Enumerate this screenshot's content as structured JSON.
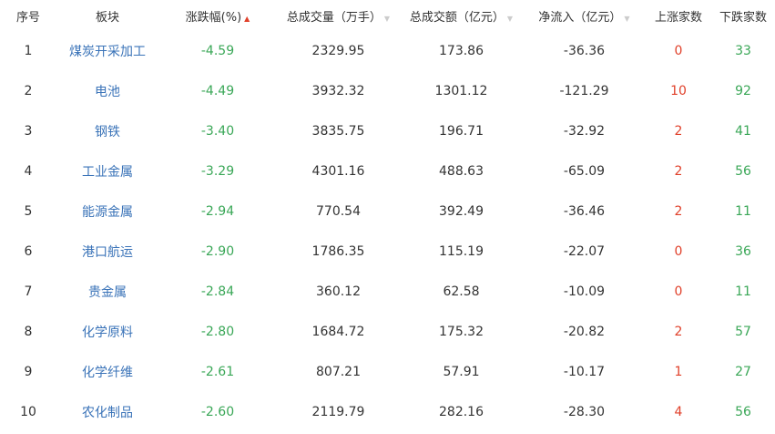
{
  "headers": [
    "序号",
    "板块",
    "涨跌幅(%)",
    "总成交量（万手）",
    "总成交额（亿元）",
    "净流入（亿元）",
    "上涨家数",
    "下跌家数"
  ],
  "sort_icons": {
    "change": "sort-up-icon",
    "volume": "sort-icon",
    "amount": "sort-icon",
    "inflow": "sort-icon"
  },
  "colors": {
    "name": "#3a73b8",
    "down": "#3aa757",
    "up": "#e0402a"
  },
  "rows": [
    {
      "rank": "1",
      "name": "煤炭开采加工",
      "change": "-4.59",
      "volume": "2329.95",
      "amount": "173.86",
      "inflow": "-36.36",
      "up": "0",
      "down": "33"
    },
    {
      "rank": "2",
      "name": "电池",
      "change": "-4.49",
      "volume": "3932.32",
      "amount": "1301.12",
      "inflow": "-121.29",
      "up": "10",
      "down": "92"
    },
    {
      "rank": "3",
      "name": "钢铁",
      "change": "-3.40",
      "volume": "3835.75",
      "amount": "196.71",
      "inflow": "-32.92",
      "up": "2",
      "down": "41"
    },
    {
      "rank": "4",
      "name": "工业金属",
      "change": "-3.29",
      "volume": "4301.16",
      "amount": "488.63",
      "inflow": "-65.09",
      "up": "2",
      "down": "56"
    },
    {
      "rank": "5",
      "name": "能源金属",
      "change": "-2.94",
      "volume": "770.54",
      "amount": "392.49",
      "inflow": "-36.46",
      "up": "2",
      "down": "11"
    },
    {
      "rank": "6",
      "name": "港口航运",
      "change": "-2.90",
      "volume": "1786.35",
      "amount": "115.19",
      "inflow": "-22.07",
      "up": "0",
      "down": "36"
    },
    {
      "rank": "7",
      "name": "贵金属",
      "change": "-2.84",
      "volume": "360.12",
      "amount": "62.58",
      "inflow": "-10.09",
      "up": "0",
      "down": "11"
    },
    {
      "rank": "8",
      "name": "化学原料",
      "change": "-2.80",
      "volume": "1684.72",
      "amount": "175.32",
      "inflow": "-20.82",
      "up": "2",
      "down": "57"
    },
    {
      "rank": "9",
      "name": "化学纤维",
      "change": "-2.61",
      "volume": "807.21",
      "amount": "57.91",
      "inflow": "-10.17",
      "up": "1",
      "down": "27"
    },
    {
      "rank": "10",
      "name": "农化制品",
      "change": "-2.60",
      "volume": "2119.79",
      "amount": "282.16",
      "inflow": "-28.30",
      "up": "4",
      "down": "56"
    }
  ]
}
